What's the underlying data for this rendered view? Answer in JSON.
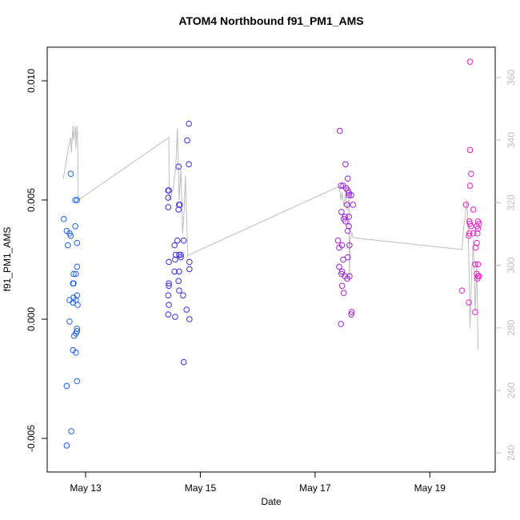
{
  "chart_data": {
    "type": "scatter",
    "title": "ATOM4 Northbound f91_PM1_AMS",
    "x_label": "Date",
    "y_label": "f91_PM1_AMS",
    "xlim": [
      12.33,
      20.14
    ],
    "ylim": [
      -0.00641,
      0.01141
    ],
    "y2lim": [
      233.9,
      369.7
    ],
    "xticks": [
      {
        "value": 13,
        "label": "May 13"
      },
      {
        "value": 15,
        "label": "May 15"
      },
      {
        "value": 17,
        "label": "May 17"
      },
      {
        "value": 19,
        "label": "May 19"
      }
    ],
    "yticks": [
      {
        "value": -0.005,
        "label": "-0.005"
      },
      {
        "value": 0,
        "label": "0.000"
      },
      {
        "value": 0.005,
        "label": "0.005"
      },
      {
        "value": 0.01,
        "label": "0.010"
      }
    ],
    "y2ticks": [
      240,
      260,
      280,
      300,
      320,
      340,
      360
    ],
    "y2_color": "#bebebe",
    "series": [
      {
        "style": "line",
        "axis": "y2",
        "color": "#bebebe",
        "x": [
          12.61,
          12.71,
          12.74,
          12.75,
          12.78,
          12.79,
          12.82,
          12.83,
          12.85,
          12.86,
          12.87,
          14.45,
          14.46,
          14.52,
          14.57,
          14.6,
          14.63,
          14.66,
          14.69,
          14.71,
          14.74,
          14.78,
          14.81,
          17.42,
          17.45,
          17.47,
          17.5,
          17.53,
          17.56,
          17.59,
          17.6,
          17.61,
          17.64,
          17.66,
          19.56,
          19.59,
          19.65,
          19.68,
          19.7,
          19.73,
          19.76,
          19.79,
          19.82,
          19.84
        ],
        "values": [
          327.5,
          338.7,
          340.8,
          336.0,
          344.6,
          340.0,
          344.3,
          337.4,
          344.6,
          341.3,
          320.8,
          340.8,
          320.8,
          324.0,
          331.0,
          343.8,
          320.8,
          331.0,
          310.0,
          315.0,
          328.5,
          302.9,
          303.4,
          325.2,
          320.8,
          323.4,
          318.8,
          322.9,
          317.7,
          321.3,
          295.2,
          308.0,
          310.6,
          308.8,
          305.0,
          311.9,
          320.8,
          302.9,
          279.9,
          297.8,
          308.0,
          285.0,
          300.4,
          273.0
        ]
      },
      {
        "style": "points",
        "color": "#1f5ff0",
        "x": [
          12.62,
          12.67,
          12.69,
          12.72,
          12.74,
          12.74,
          12.82,
          12.85,
          12.82,
          12.85,
          12.85,
          12.79,
          12.83,
          12.78,
          12.79,
          12.72,
          12.79,
          12.85,
          12.83,
          12.86,
          12.78,
          12.72,
          12.85,
          12.85,
          12.83,
          12.8,
          12.78,
          12.83,
          12.85,
          12.67,
          12.75,
          12.67
        ],
        "values": [
          0.0042,
          0.0037,
          0.0031,
          0.0036,
          0.0035,
          0.0061,
          0.005,
          0.005,
          0.0039,
          0.0032,
          0.0022,
          0.0019,
          0.0019,
          0.0015,
          0.0015,
          0.0008,
          0.0009,
          0.001,
          0.0008,
          0.0006,
          0.0007,
          -0.0001,
          -0.0004,
          -0.0005,
          -0.0006,
          -0.0007,
          -0.0013,
          -0.0014,
          -0.0026,
          -0.0028,
          -0.0047,
          -0.0053
        ]
      },
      {
        "style": "points",
        "color": "#3a2ee6",
        "x": [
          14.44,
          14.45,
          14.44,
          14.44,
          14.62,
          14.63,
          14.64,
          14.62,
          14.77,
          14.8,
          14.8,
          14.55,
          14.6,
          14.57,
          14.56,
          14.63,
          14.66,
          14.66,
          14.71,
          14.81,
          14.81,
          14.45,
          14.45,
          14.45,
          14.44,
          14.45,
          14.44,
          14.63,
          14.62,
          14.63,
          14.7,
          14.55,
          14.76,
          14.81,
          14.56,
          14.71
        ],
        "values": [
          0.0054,
          0.0054,
          0.0051,
          0.0047,
          0.0046,
          0.0048,
          0.0048,
          0.0064,
          0.0075,
          0.0082,
          0.0065,
          0.0031,
          0.0033,
          0.0027,
          0.0025,
          0.0027,
          0.0027,
          0.0026,
          0.0033,
          0.0024,
          0.0021,
          0.0024,
          0.0015,
          0.0014,
          0.001,
          0.0006,
          0.0002,
          0.002,
          0.0016,
          0.0012,
          0.001,
          0.002,
          0.0004,
          0.0,
          0.0001,
          -0.0018
        ]
      },
      {
        "style": "points",
        "color": "#9b22d8",
        "x": [
          17.43,
          17.53,
          17.49,
          17.54,
          17.57,
          17.57,
          17.59,
          17.59,
          17.45,
          17.63,
          17.66,
          17.56,
          17.52,
          17.53,
          17.5,
          17.59,
          17.59,
          17.57,
          17.46,
          17.4,
          17.47,
          17.42,
          17.6,
          17.57,
          17.49,
          17.42,
          17.47,
          17.46,
          17.52,
          17.6,
          17.56,
          17.47,
          17.5,
          17.64,
          17.63,
          17.45
        ],
        "values": [
          0.0079,
          0.0065,
          0.0056,
          0.0055,
          0.0059,
          0.0054,
          0.0053,
          0.0052,
          0.0056,
          0.0052,
          0.0048,
          0.0048,
          0.0043,
          0.0041,
          0.0042,
          0.0043,
          0.0039,
          0.0037,
          0.0045,
          0.0033,
          0.0031,
          0.003,
          0.0031,
          0.0026,
          0.0025,
          0.0022,
          0.002,
          0.0019,
          0.0018,
          0.0018,
          0.0017,
          0.0014,
          0.0011,
          0.0003,
          0.0002,
          -0.0002
        ]
      },
      {
        "style": "points",
        "color": "#e81fc4",
        "x": [
          19.7,
          19.7,
          19.72,
          19.7,
          19.63,
          19.76,
          19.84,
          19.86,
          19.82,
          19.84,
          19.69,
          19.7,
          19.72,
          19.69,
          19.76,
          19.83,
          19.68,
          19.82,
          19.8,
          19.79,
          19.84,
          19.82,
          19.84,
          19.86,
          19.83,
          19.56,
          19.68,
          19.79
        ],
        "values": [
          0.0108,
          0.0071,
          0.0061,
          0.0056,
          0.0048,
          0.0046,
          0.0041,
          0.004,
          0.0039,
          0.0038,
          0.0041,
          0.004,
          0.0039,
          0.0036,
          0.0036,
          0.0036,
          0.0035,
          0.0032,
          0.003,
          0.0023,
          0.0023,
          0.0019,
          0.0018,
          0.0018,
          0.0017,
          0.0012,
          0.0007,
          0.0003
        ]
      }
    ]
  }
}
